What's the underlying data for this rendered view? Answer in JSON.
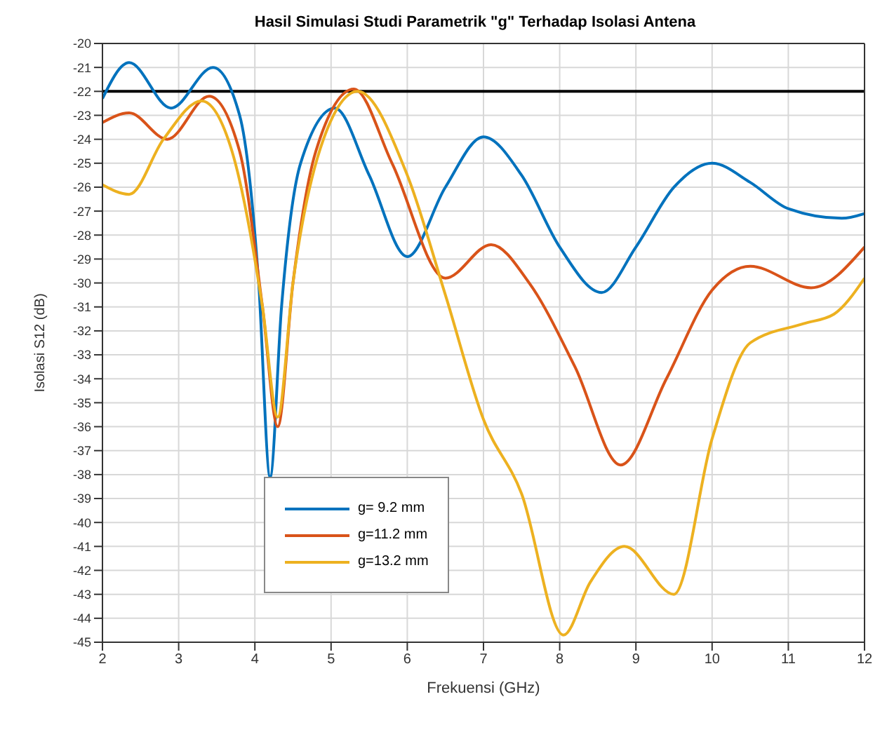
{
  "chart_data": {
    "type": "line",
    "title": "Hasil Simulasi Studi Parametrik \"g\" Terhadap Isolasi Antena",
    "xlabel": "Frekuensi (GHz)",
    "ylabel": "Isolasi S12 (dB)",
    "xlim": [
      2,
      12
    ],
    "xticks": [
      2,
      3,
      4,
      5,
      6,
      7,
      8,
      9,
      10,
      11,
      12
    ],
    "ylim": [
      -45,
      -20
    ],
    "yticks": [
      -45,
      -44,
      -43,
      -42,
      -41,
      -40,
      -39,
      -38,
      -37,
      -36,
      -35,
      -34,
      -33,
      -32,
      -31,
      -30,
      -29,
      -28,
      -27,
      -26,
      -25,
      -24,
      -23,
      -22,
      -21,
      -20
    ],
    "grid": true,
    "legend": "bottom left",
    "line_style": "solid",
    "marker": "none",
    "ref_lines": [
      {
        "axis": "y",
        "value": -22,
        "color": "#000000"
      }
    ],
    "series": [
      {
        "name": "g= 9.2 mm",
        "color": "#0072bd",
        "x": [
          2,
          2.35,
          2.9,
          3.45,
          3.8,
          4.05,
          4.2,
          4.35,
          4.6,
          5.05,
          5.5,
          6.0,
          6.5,
          7.0,
          7.5,
          8.0,
          8.55,
          9.0,
          9.5,
          10.0,
          10.5,
          11.0,
          11.7,
          12
        ],
        "values": [
          -22.3,
          -20.8,
          -22.7,
          -21.0,
          -23.0,
          -30.0,
          -38.1,
          -31.0,
          -25.0,
          -22.7,
          -25.5,
          -28.9,
          -26.0,
          -23.9,
          -25.5,
          -28.5,
          -30.4,
          -28.5,
          -26.0,
          -25.0,
          -25.8,
          -26.9,
          -27.3,
          -27.1
        ]
      },
      {
        "name": "g=11.2 mm",
        "color": "#d95319",
        "x": [
          2,
          2.35,
          2.85,
          3.4,
          3.8,
          4.1,
          4.3,
          4.5,
          4.8,
          5.3,
          5.8,
          6.5,
          7.1,
          7.6,
          8.2,
          8.8,
          9.4,
          10.0,
          10.5,
          11.3,
          12
        ],
        "values": [
          -23.3,
          -22.9,
          -24.0,
          -22.2,
          -24.5,
          -31.0,
          -36.0,
          -30.0,
          -24.5,
          -21.9,
          -25.0,
          -29.8,
          -28.4,
          -30.0,
          -33.5,
          -37.6,
          -34.0,
          -30.3,
          -29.3,
          -30.2,
          -28.5
        ]
      },
      {
        "name": "g=13.2 mm",
        "color": "#edb120",
        "x": [
          2,
          2.35,
          2.8,
          3.3,
          3.7,
          4.1,
          4.3,
          4.5,
          4.9,
          5.35,
          6.0,
          6.5,
          7.0,
          7.5,
          8.05,
          8.4,
          8.85,
          9.5,
          10.0,
          10.5,
          11.2,
          11.6,
          12
        ],
        "values": [
          -25.9,
          -26.3,
          -24.0,
          -22.4,
          -24.5,
          -31.0,
          -35.6,
          -30.0,
          -24.0,
          -22.0,
          -25.5,
          -30.5,
          -35.7,
          -38.8,
          -44.7,
          -42.5,
          -41.0,
          -43.0,
          -36.5,
          -32.5,
          -31.7,
          -31.3,
          -29.8
        ]
      }
    ]
  }
}
